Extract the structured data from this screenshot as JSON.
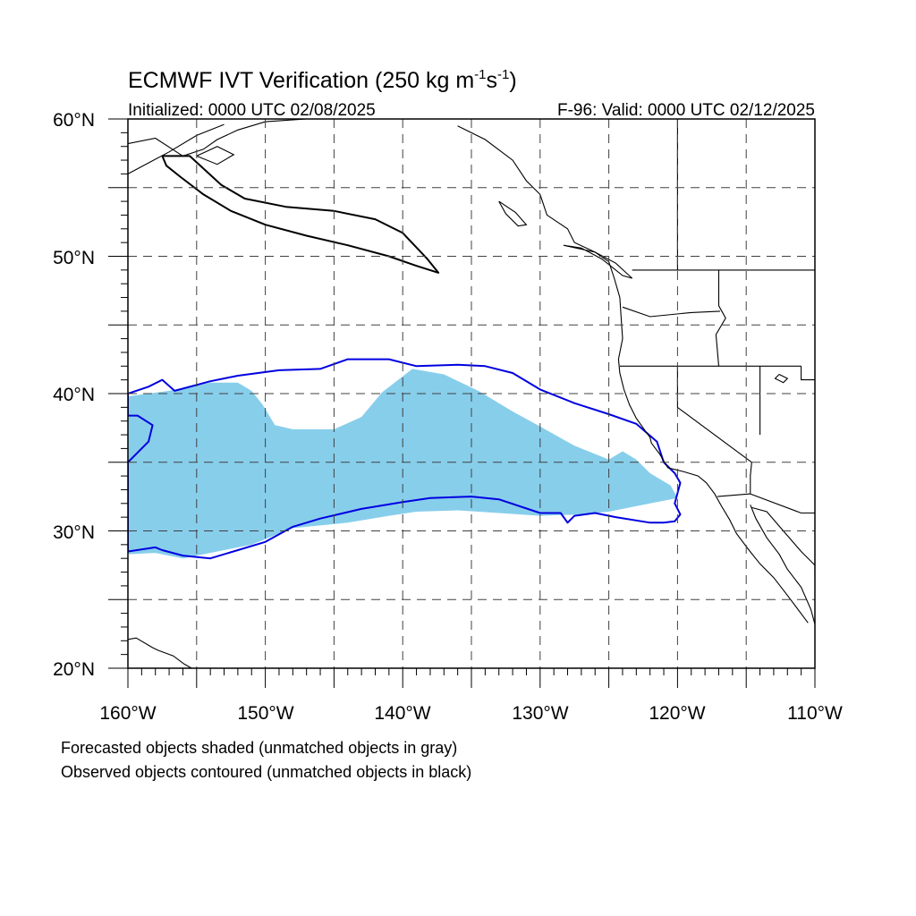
{
  "map": {
    "title": "ECMWF IVT Verification (250 kg m",
    "title_sup1": "-1",
    "title_mid": "s",
    "title_sup2": "-1",
    "title_end": ")",
    "init_label": "Initialized: 0000 UTC 02/08/2025",
    "valid_label": "F-96: Valid: 0000 UTC 02/12/2025",
    "extent": {
      "lon": [
        -160,
        -110
      ],
      "lat": [
        20,
        60
      ]
    },
    "lat_labels": [
      "60°N",
      "50°N",
      "40°N",
      "30°N",
      "20°N"
    ],
    "lon_labels": [
      "160°W",
      "150°W",
      "140°W",
      "130°W",
      "120°W",
      "110°W"
    ],
    "caption_line1": "Forecasted objects shaded (unmatched objects in gray)",
    "caption_line2": "Observed objects contoured (unmatched objects in black)",
    "colors": {
      "forecast_fill": "#87ceeb",
      "matched_observed_contour": "#0000e0",
      "unmatched_observed_contour": "#000000",
      "coastline": "#000000",
      "grid": "#404040"
    },
    "objects": [
      {
        "name": "forecast-object-matched",
        "kind": "forecast",
        "matched": true,
        "coords": [
          [
            -160,
            39.8
          ],
          [
            -157,
            40.2
          ],
          [
            -154,
            40.8
          ],
          [
            -152,
            40.8
          ],
          [
            -151,
            40.2
          ],
          [
            -150.2,
            39.2
          ],
          [
            -149.3,
            37.7
          ],
          [
            -148,
            37.4
          ],
          [
            -145,
            37.4
          ],
          [
            -143,
            38.3
          ],
          [
            -141.5,
            40.1
          ],
          [
            -139.3,
            41.8
          ],
          [
            -137,
            41.4
          ],
          [
            -134.5,
            40.2
          ],
          [
            -132,
            38.7
          ],
          [
            -130,
            37.6
          ],
          [
            -127.5,
            36.2
          ],
          [
            -125,
            35.2
          ],
          [
            -124,
            35.8
          ],
          [
            -123,
            35.2
          ],
          [
            -122,
            34.2
          ],
          [
            -120.5,
            33.3
          ],
          [
            -120,
            32.4
          ],
          [
            -122,
            32.0
          ],
          [
            -125,
            31.4
          ],
          [
            -127,
            31.2
          ],
          [
            -130,
            31.1
          ],
          [
            -133,
            31.3
          ],
          [
            -136,
            31.5
          ],
          [
            -139,
            31.4
          ],
          [
            -141,
            31.1
          ],
          [
            -144,
            30.6
          ],
          [
            -148,
            30.2
          ],
          [
            -151,
            29.0
          ],
          [
            -153,
            28.6
          ],
          [
            -156,
            28.0
          ],
          [
            -158,
            28.4
          ],
          [
            -160,
            28.3
          ]
        ]
      },
      {
        "name": "observed-object-matched",
        "kind": "observed",
        "matched": true,
        "coords": [
          [
            -160,
            40.0
          ],
          [
            -158.5,
            40.5
          ],
          [
            -157.5,
            41.0
          ],
          [
            -156.6,
            40.2
          ],
          [
            -154,
            40.9
          ],
          [
            -152,
            41.3
          ],
          [
            -149,
            41.7
          ],
          [
            -146,
            41.8
          ],
          [
            -144,
            42.5
          ],
          [
            -141,
            42.5
          ],
          [
            -139,
            42.0
          ],
          [
            -136,
            42.1
          ],
          [
            -134,
            42.0
          ],
          [
            -132,
            41.5
          ],
          [
            -130,
            40.3
          ],
          [
            -127.5,
            39.3
          ],
          [
            -125,
            38.5
          ],
          [
            -123,
            37.8
          ],
          [
            -121.5,
            36.5
          ],
          [
            -121,
            35.0
          ],
          [
            -120.2,
            34.2
          ],
          [
            -119.8,
            33.5
          ],
          [
            -120.2,
            32.0
          ],
          [
            -119.8,
            31.2
          ],
          [
            -120.2,
            30.7
          ],
          [
            -121,
            30.6
          ],
          [
            -122,
            30.6
          ],
          [
            -124.5,
            31.0
          ],
          [
            -126,
            31.3
          ],
          [
            -127.5,
            31.1
          ],
          [
            -128,
            30.6
          ],
          [
            -128.5,
            31.3
          ],
          [
            -130,
            31.3
          ],
          [
            -133,
            32.3
          ],
          [
            -135,
            32.5
          ],
          [
            -138,
            32.4
          ],
          [
            -140,
            32.1
          ],
          [
            -143,
            31.6
          ],
          [
            -146,
            30.9
          ],
          [
            -148,
            30.3
          ],
          [
            -150,
            29.2
          ],
          [
            -152,
            28.6
          ],
          [
            -154,
            28.0
          ],
          [
            -156,
            28.2
          ],
          [
            -157.5,
            28.6
          ],
          [
            -158,
            28.8
          ],
          [
            -160,
            28.5
          ],
          [
            -160,
            35.0
          ],
          [
            -158.5,
            36.5
          ],
          [
            -158.2,
            37.7
          ],
          [
            -159.3,
            38.4
          ],
          [
            -160,
            38.4
          ]
        ]
      },
      {
        "name": "observed-object-unmatched",
        "kind": "observed",
        "matched": false,
        "coords": [
          [
            -157.5,
            57.3
          ],
          [
            -155.5,
            57.3
          ],
          [
            -153.2,
            55.2
          ],
          [
            -151.5,
            54.2
          ],
          [
            -148.5,
            53.6
          ],
          [
            -145,
            53.3
          ],
          [
            -142,
            52.7
          ],
          [
            -140,
            51.7
          ],
          [
            -138.2,
            49.8
          ],
          [
            -137.4,
            48.8
          ],
          [
            -139,
            49.3
          ],
          [
            -141,
            50.0
          ],
          [
            -144,
            50.8
          ],
          [
            -147,
            51.5
          ],
          [
            -150,
            52.3
          ],
          [
            -152.5,
            53.3
          ],
          [
            -154.5,
            54.5
          ],
          [
            -156.2,
            55.8
          ],
          [
            -157.2,
            56.6
          ],
          [
            -157.5,
            57.3
          ]
        ]
      }
    ]
  }
}
